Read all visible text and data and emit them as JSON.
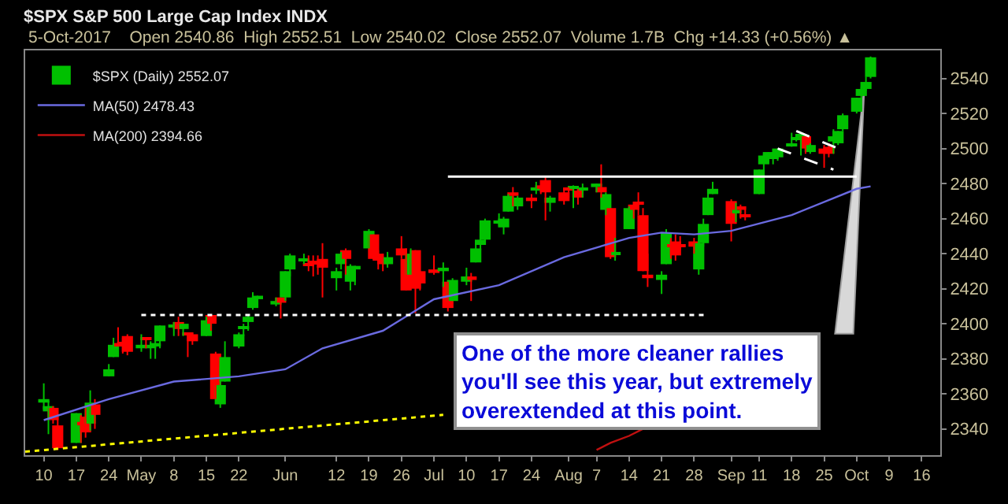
{
  "chart_data": {
    "type": "candlestick",
    "title": "$SPX S&P 500 Large Cap Index INDX",
    "subtitle": "5-Oct-2017    Open 2540.86  High 2552.51  Low 2540.02  Close 2552.07  Volume 1.7B  Chg +14.33 (+0.56%) ▲",
    "annotations": [
      "One of the more cleaner rallies\nyou'll see this year, but extremely\noverextended at this point."
    ],
    "legend": "top left",
    "xlim": [
      "2017-04-06",
      "2017-10-20"
    ],
    "xticks": [
      {
        "value": "2017-04-10",
        "label": "10"
      },
      {
        "value": "2017-04-17",
        "label": "17"
      },
      {
        "value": "2017-04-24",
        "label": "24"
      },
      {
        "value": "2017-05-01",
        "label": "May"
      },
      {
        "value": "2017-05-08",
        "label": "8"
      },
      {
        "value": "2017-05-15",
        "label": "15"
      },
      {
        "value": "2017-05-22",
        "label": "22"
      },
      {
        "value": "2017-06-01",
        "label": "Jun"
      },
      {
        "value": "2017-06-12",
        "label": "12"
      },
      {
        "value": "2017-06-19",
        "label": "19"
      },
      {
        "value": "2017-06-26",
        "label": "26"
      },
      {
        "value": "2017-07-03",
        "label": "Jul"
      },
      {
        "value": "2017-07-10",
        "label": "10"
      },
      {
        "value": "2017-07-17",
        "label": "17"
      },
      {
        "value": "2017-07-24",
        "label": "24"
      },
      {
        "value": "2017-08-01",
        "label": "Aug"
      },
      {
        "value": "2017-08-07",
        "label": "7"
      },
      {
        "value": "2017-08-14",
        "label": "14"
      },
      {
        "value": "2017-08-21",
        "label": "21"
      },
      {
        "value": "2017-08-28",
        "label": "28"
      },
      {
        "value": "2017-09-05",
        "label": "Sep"
      },
      {
        "value": "2017-09-11",
        "label": "11"
      },
      {
        "value": "2017-09-18",
        "label": "18"
      },
      {
        "value": "2017-09-25",
        "label": "25"
      },
      {
        "value": "2017-10-02",
        "label": "Oct"
      },
      {
        "value": "2017-10-09",
        "label": "9"
      },
      {
        "value": "2017-10-16",
        "label": "16"
      }
    ],
    "ylim": [
      2325,
      2556
    ],
    "yticks": [
      2340,
      2360,
      2380,
      2400,
      2420,
      2440,
      2460,
      2480,
      2500,
      2520,
      2540
    ],
    "series": [
      {
        "name": "$SPX (Daily) 2552.07",
        "x": [
          "2017-04-10",
          "2017-04-11",
          "2017-04-12",
          "2017-04-13",
          "2017-04-17",
          "2017-04-18",
          "2017-04-19",
          "2017-04-20",
          "2017-04-21",
          "2017-04-24",
          "2017-04-25",
          "2017-04-26",
          "2017-04-27",
          "2017-04-28",
          "2017-05-01",
          "2017-05-02",
          "2017-05-03",
          "2017-05-04",
          "2017-05-05",
          "2017-05-08",
          "2017-05-09",
          "2017-05-10",
          "2017-05-11",
          "2017-05-12",
          "2017-05-15",
          "2017-05-16",
          "2017-05-17",
          "2017-05-18",
          "2017-05-19",
          "2017-05-22",
          "2017-05-23",
          "2017-05-24",
          "2017-05-25",
          "2017-05-26",
          "2017-05-30",
          "2017-05-31",
          "2017-06-01",
          "2017-06-02",
          "2017-06-05",
          "2017-06-06",
          "2017-06-07",
          "2017-06-08",
          "2017-06-09",
          "2017-06-12",
          "2017-06-13",
          "2017-06-14",
          "2017-06-15",
          "2017-06-16",
          "2017-06-19",
          "2017-06-20",
          "2017-06-21",
          "2017-06-22",
          "2017-06-23",
          "2017-06-26",
          "2017-06-27",
          "2017-06-28",
          "2017-06-29",
          "2017-06-30",
          "2017-07-03",
          "2017-07-05",
          "2017-07-06",
          "2017-07-07",
          "2017-07-10",
          "2017-07-11",
          "2017-07-12",
          "2017-07-13",
          "2017-07-14",
          "2017-07-17",
          "2017-07-18",
          "2017-07-19",
          "2017-07-20",
          "2017-07-21",
          "2017-07-24",
          "2017-07-25",
          "2017-07-26",
          "2017-07-27",
          "2017-07-28",
          "2017-07-31",
          "2017-08-01",
          "2017-08-02",
          "2017-08-03",
          "2017-08-04",
          "2017-08-07",
          "2017-08-08",
          "2017-08-09",
          "2017-08-10",
          "2017-08-11",
          "2017-08-14",
          "2017-08-15",
          "2017-08-16",
          "2017-08-17",
          "2017-08-18",
          "2017-08-21",
          "2017-08-22",
          "2017-08-23",
          "2017-08-24",
          "2017-08-25",
          "2017-08-28",
          "2017-08-29",
          "2017-08-30",
          "2017-08-31",
          "2017-09-01",
          "2017-09-05",
          "2017-09-06",
          "2017-09-07",
          "2017-09-08",
          "2017-09-11",
          "2017-09-12",
          "2017-09-13",
          "2017-09-14",
          "2017-09-15",
          "2017-09-18",
          "2017-09-19",
          "2017-09-20",
          "2017-09-21",
          "2017-09-22",
          "2017-09-25",
          "2017-09-26",
          "2017-09-27",
          "2017-09-28",
          "2017-09-29",
          "2017-10-02",
          "2017-10-03",
          "2017-10-04",
          "2017-10-05"
        ],
        "ohlc": [
          [
            2355,
            2366,
            2351,
            2357
          ],
          [
            2350,
            2356,
            2337,
            2353
          ],
          [
            2352,
            2353,
            2343,
            2345
          ],
          [
            2342,
            2348,
            2328,
            2329
          ],
          [
            2332,
            2349,
            2332,
            2349
          ],
          [
            2344,
            2348,
            2332,
            2342
          ],
          [
            2347,
            2352,
            2335,
            2338
          ],
          [
            2343,
            2362,
            2339,
            2355
          ],
          [
            2354,
            2357,
            2340,
            2348
          ],
          [
            2370,
            2377,
            2370,
            2374
          ],
          [
            2381,
            2392,
            2381,
            2388
          ],
          [
            2389,
            2398,
            2387,
            2387
          ],
          [
            2389,
            2392,
            2383,
            2388
          ],
          [
            2393,
            2394,
            2382,
            2384
          ],
          [
            2386,
            2394,
            2384,
            2388
          ],
          [
            2392,
            2392,
            2386,
            2391
          ],
          [
            2386,
            2390,
            2380,
            2388
          ],
          [
            2387,
            2392,
            2380,
            2389
          ],
          [
            2390,
            2399,
            2386,
            2399
          ],
          [
            2398,
            2401,
            2393,
            2399
          ],
          [
            2401,
            2404,
            2393,
            2397
          ],
          [
            2397,
            2400,
            2393,
            2400
          ],
          [
            2395,
            2395,
            2381,
            2394
          ],
          [
            2394,
            2395,
            2388,
            2390
          ],
          [
            2393,
            2404,
            2393,
            2402
          ],
          [
            2405,
            2405,
            2396,
            2400
          ],
          [
            2383,
            2384,
            2357,
            2357
          ],
          [
            2354,
            2375,
            2352,
            2365
          ],
          [
            2367,
            2390,
            2367,
            2381
          ],
          [
            2387,
            2395,
            2386,
            2394
          ],
          [
            2397,
            2400,
            2393,
            2398
          ],
          [
            2401,
            2405,
            2396,
            2404
          ],
          [
            2409,
            2418,
            2408,
            2415
          ],
          [
            2414,
            2416,
            2412,
            2416
          ],
          [
            2411,
            2415,
            2410,
            2413
          ],
          [
            2415,
            2415,
            2403,
            2412
          ],
          [
            2415,
            2430,
            2413,
            2430
          ],
          [
            2431,
            2440,
            2427,
            2439
          ],
          [
            2436,
            2440,
            2434,
            2437
          ],
          [
            2434,
            2439,
            2430,
            2433
          ],
          [
            2436,
            2439,
            2427,
            2434
          ],
          [
            2435,
            2439,
            2428,
            2434
          ],
          [
            2437,
            2446,
            2415,
            2432
          ],
          [
            2426,
            2432,
            2419,
            2430
          ],
          [
            2434,
            2441,
            2431,
            2440
          ],
          [
            2442,
            2443,
            2428,
            2437
          ],
          [
            2424,
            2434,
            2419,
            2433
          ],
          [
            2431,
            2433,
            2422,
            2433
          ],
          [
            2443,
            2454,
            2443,
            2453
          ],
          [
            2451,
            2451,
            2437,
            2437
          ],
          [
            2440,
            2442,
            2431,
            2436
          ],
          [
            2436,
            2440,
            2430,
            2434
          ],
          [
            2434,
            2441,
            2432,
            2438
          ],
          [
            2443,
            2450,
            2437,
            2439
          ],
          [
            2437,
            2443,
            2419,
            2419
          ],
          [
            2428,
            2443,
            2428,
            2440
          ],
          [
            2442,
            2442,
            2406,
            2420
          ],
          [
            2430,
            2430,
            2419,
            2423
          ],
          [
            2431,
            2439,
            2428,
            2429
          ],
          [
            2430,
            2435,
            2421,
            2432
          ],
          [
            2424,
            2424,
            2407,
            2409
          ],
          [
            2413,
            2426,
            2413,
            2425
          ],
          [
            2424,
            2432,
            2422,
            2427
          ],
          [
            2427,
            2429,
            2413,
            2425
          ],
          [
            2435,
            2445,
            2435,
            2443
          ],
          [
            2445,
            2449,
            2442,
            2448
          ],
          [
            2448,
            2460,
            2446,
            2459
          ],
          [
            2458,
            2463,
            2456,
            2459
          ],
          [
            2455,
            2461,
            2451,
            2460
          ],
          [
            2464,
            2474,
            2464,
            2473
          ],
          [
            2475,
            2478,
            2467,
            2473
          ],
          [
            2467,
            2473,
            2465,
            2472
          ],
          [
            2472,
            2474,
            2466,
            2470
          ],
          [
            2476,
            2481,
            2474,
            2477
          ],
          [
            2479,
            2479,
            2474,
            2477
          ],
          [
            2482,
            2484,
            2459,
            2475
          ],
          [
            2469,
            2473,
            2464,
            2472
          ],
          [
            2475,
            2477,
            2468,
            2470
          ],
          [
            2477,
            2478,
            2472,
            2476
          ],
          [
            2477,
            2479,
            2466,
            2478
          ],
          [
            2476,
            2477,
            2468,
            2472
          ],
          [
            2476,
            2480,
            2472,
            2477
          ],
          [
            2478,
            2480,
            2475,
            2480
          ],
          [
            2478,
            2491,
            2472,
            2475
          ],
          [
            2465,
            2475,
            2462,
            2474
          ],
          [
            2466,
            2466,
            2437,
            2438
          ],
          [
            2440,
            2449,
            2436,
            2441
          ],
          [
            2454,
            2467,
            2454,
            2466
          ],
          [
            2468,
            2468,
            2460,
            2465
          ],
          [
            2469,
            2475,
            2462,
            2468
          ],
          [
            2462,
            2466,
            2430,
            2430
          ],
          [
            2428,
            2440,
            2421,
            2426
          ],
          [
            2425,
            2430,
            2417,
            2428
          ],
          [
            2434,
            2454,
            2434,
            2452
          ],
          [
            2445,
            2449,
            2437,
            2444
          ],
          [
            2447,
            2451,
            2436,
            2439
          ],
          [
            2445,
            2450,
            2442,
            2444
          ],
          [
            2447,
            2449,
            2440,
            2444
          ],
          [
            2431,
            2449,
            2428,
            2446
          ],
          [
            2446,
            2460,
            2444,
            2457
          ],
          [
            2462,
            2475,
            2462,
            2472
          ],
          [
            2474,
            2481,
            2474,
            2477
          ],
          [
            2470,
            2471,
            2447,
            2457
          ],
          [
            2463,
            2469,
            2458,
            2465
          ],
          [
            2467,
            2468,
            2460,
            2465
          ],
          [
            2462,
            2467,
            2459,
            2461
          ],
          [
            2474,
            2488,
            2474,
            2488
          ],
          [
            2491,
            2497,
            2487,
            2496
          ],
          [
            2494,
            2498,
            2492,
            2498
          ],
          [
            2494,
            2498,
            2491,
            2495
          ],
          [
            2495,
            2500,
            2493,
            2500
          ],
          [
            2502,
            2509,
            2501,
            2503
          ],
          [
            2505,
            2508,
            2504,
            2506
          ],
          [
            2507,
            2508,
            2496,
            2508
          ],
          [
            2507,
            2507,
            2497,
            2500
          ],
          [
            2498,
            2503,
            2497,
            2502
          ],
          [
            2500,
            2502,
            2489,
            2497
          ],
          [
            2501,
            2503,
            2495,
            2497
          ],
          [
            2504,
            2511,
            2497,
            2507
          ],
          [
            2503,
            2510,
            2502,
            2510
          ],
          [
            2511,
            2520,
            2510,
            2519
          ],
          [
            2521,
            2529,
            2520,
            2529
          ],
          [
            2530,
            2535,
            2528,
            2534
          ],
          [
            2534,
            2541,
            2533,
            2538
          ],
          [
            2540.86,
            2552.51,
            2540.02,
            2552.07
          ]
        ],
        "colors": [
          "#00c000",
          "#00c000",
          "#ff0000",
          "#ff0000",
          "#00c000",
          "#ff0000",
          "#ff0000",
          "#00c000",
          "#ff0000",
          "#00c000",
          "#00c000",
          "#ff0000",
          "#ff0000",
          "#ff0000",
          "#00c000",
          "#ff0000",
          "#00c000",
          "#00c000",
          "#00c000",
          "#00c000",
          "#ff0000",
          "#00c000",
          "#ff0000",
          "#ff0000",
          "#00c000",
          "#ff0000",
          "#ff0000",
          "#00c000",
          "#00c000",
          "#00c000",
          "#00c000",
          "#00c000",
          "#00c000",
          "#00c000",
          "#00c000",
          "#ff0000",
          "#00c000",
          "#00c000",
          "#00c000",
          "#ff0000",
          "#ff0000",
          "#ff0000",
          "#ff0000",
          "#00c000",
          "#00c000",
          "#ff0000",
          "#00c000",
          "#00c000",
          "#00c000",
          "#ff0000",
          "#ff0000",
          "#ff0000",
          "#00c000",
          "#ff0000",
          "#ff0000",
          "#00c000",
          "#ff0000",
          "#ff0000",
          "#ff0000",
          "#00c000",
          "#ff0000",
          "#00c000",
          "#00c000",
          "#ff0000",
          "#00c000",
          "#00c000",
          "#00c000",
          "#00c000",
          "#00c000",
          "#00c000",
          "#ff0000",
          "#00c000",
          "#ff0000",
          "#00c000",
          "#ff0000",
          "#ff0000",
          "#00c000",
          "#ff0000",
          "#ff0000",
          "#00c000",
          "#ff0000",
          "#00c000",
          "#00c000",
          "#ff0000",
          "#00c000",
          "#ff0000",
          "#00c000",
          "#00c000",
          "#ff0000",
          "#ff0000",
          "#ff0000",
          "#ff0000",
          "#00c000",
          "#00c000",
          "#ff0000",
          "#ff0000",
          "#ff0000",
          "#ff0000",
          "#00c000",
          "#00c000",
          "#00c000",
          "#00c000",
          "#ff0000",
          "#00c000",
          "#ff0000",
          "#ff0000",
          "#00c000",
          "#00c000",
          "#00c000",
          "#00c000",
          "#00c000",
          "#00c000",
          "#00c000",
          "#00c000",
          "#ff0000",
          "#00c000",
          "#ff0000",
          "#ff0000",
          "#00c000",
          "#00c000",
          "#00c000",
          "#00c000",
          "#00c000",
          "#00c000",
          "#00c000"
        ]
      },
      {
        "type": "line",
        "name": "MA(50) 2478.43",
        "color": "#6a6ae0",
        "x": [
          "2017-04-10",
          "2017-04-24",
          "2017-05-08",
          "2017-05-22",
          "2017-06-01",
          "2017-06-09",
          "2017-06-22",
          "2017-07-03",
          "2017-07-17",
          "2017-07-31",
          "2017-08-14",
          "2017-08-21",
          "2017-08-28",
          "2017-09-05",
          "2017-09-18",
          "2017-10-02",
          "2017-10-05"
        ],
        "values": [
          2345,
          2357,
          2367,
          2370,
          2374,
          2386,
          2396,
          2414,
          2422,
          2438,
          2449,
          2452,
          2451,
          2453,
          2462,
          2477,
          2478.43
        ]
      },
      {
        "type": "line",
        "name": "MA(200) 2394.66",
        "color": "#c01010",
        "x": [
          "2017-08-07",
          "2017-08-10",
          "2017-08-14",
          "2017-08-17"
        ],
        "values": [
          2328,
          2332,
          2336,
          2340
        ]
      },
      {
        "type": "line",
        "color": "#ffff00",
        "line_style": "dotted",
        "x": [
          "2017-04-06",
          "2017-07-05"
        ],
        "values": [
          2327,
          2348
        ]
      },
      {
        "type": "line",
        "color": "#ffffff",
        "line_style": "dotted",
        "x": [
          "2017-05-01",
          "2017-08-31"
        ],
        "values": [
          2405,
          2405
        ]
      },
      {
        "type": "line",
        "color": "#ffffff",
        "line_style": "solid",
        "x": [
          "2017-07-06",
          "2017-10-02"
        ],
        "values": [
          2484,
          2484
        ]
      },
      {
        "type": "line",
        "color": "#ffffff",
        "line_style": "dashed",
        "x": [
          "2017-09-19",
          "2017-09-28"
        ],
        "values": [
          2510,
          2500
        ]
      },
      {
        "type": "line",
        "color": "#ffffff",
        "line_style": "dashed",
        "x": [
          "2017-09-15",
          "2017-09-27"
        ],
        "values": [
          2500,
          2488
        ]
      }
    ]
  }
}
